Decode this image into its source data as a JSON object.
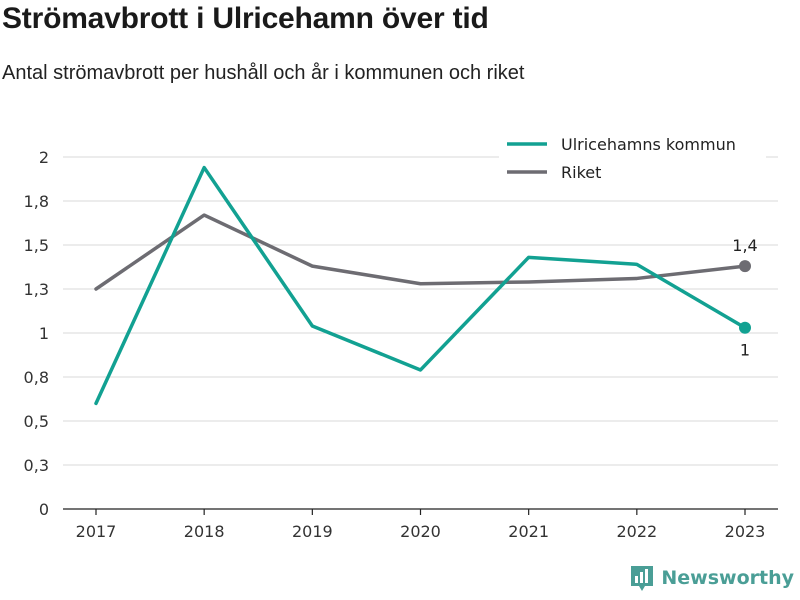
{
  "header": {
    "title": "Strömavbrott i Ulricehamn över tid",
    "subtitle": "Antal strömavbrott per hushåll och år i kommunen och riket"
  },
  "colors": {
    "kommun": "#12a192",
    "riket": "#6d6c72",
    "grid": "#d9d9d9",
    "brand": "#4a9e96"
  },
  "chart_data": {
    "type": "line",
    "title": "Strömavbrott i Ulricehamn över tid",
    "subtitle": "Antal strömavbrott per hushåll och år i kommunen och riket",
    "xlabel": "",
    "ylabel": "",
    "categories": [
      "2017",
      "2018",
      "2019",
      "2020",
      "2021",
      "2022",
      "2023"
    ],
    "y_ticks": [
      {
        "value": 0,
        "label": "0"
      },
      {
        "value": 0.25,
        "label": "0,3"
      },
      {
        "value": 0.5,
        "label": "0,5"
      },
      {
        "value": 0.75,
        "label": "0,8"
      },
      {
        "value": 1.0,
        "label": "1"
      },
      {
        "value": 1.25,
        "label": "1,3"
      },
      {
        "value": 1.5,
        "label": "1,5"
      },
      {
        "value": 1.75,
        "label": "1,8"
      },
      {
        "value": 2.0,
        "label": "2"
      }
    ],
    "ylim": [
      0,
      2
    ],
    "grid": true,
    "legend_position": "top-right",
    "series": [
      {
        "name": "Ulricehamns kommun",
        "color": "#12a192",
        "values": [
          0.6,
          1.94,
          1.04,
          0.79,
          1.43,
          1.39,
          1.03
        ],
        "end_label": "1",
        "end_label_position": "below"
      },
      {
        "name": "Riket",
        "color": "#6d6c72",
        "values": [
          1.25,
          1.67,
          1.38,
          1.28,
          1.29,
          1.31,
          1.38
        ],
        "end_label": "1,4",
        "end_label_position": "above"
      }
    ]
  },
  "branding": {
    "name": "Newsworthy",
    "logo_icon": "bar-chart-logo-icon"
  }
}
